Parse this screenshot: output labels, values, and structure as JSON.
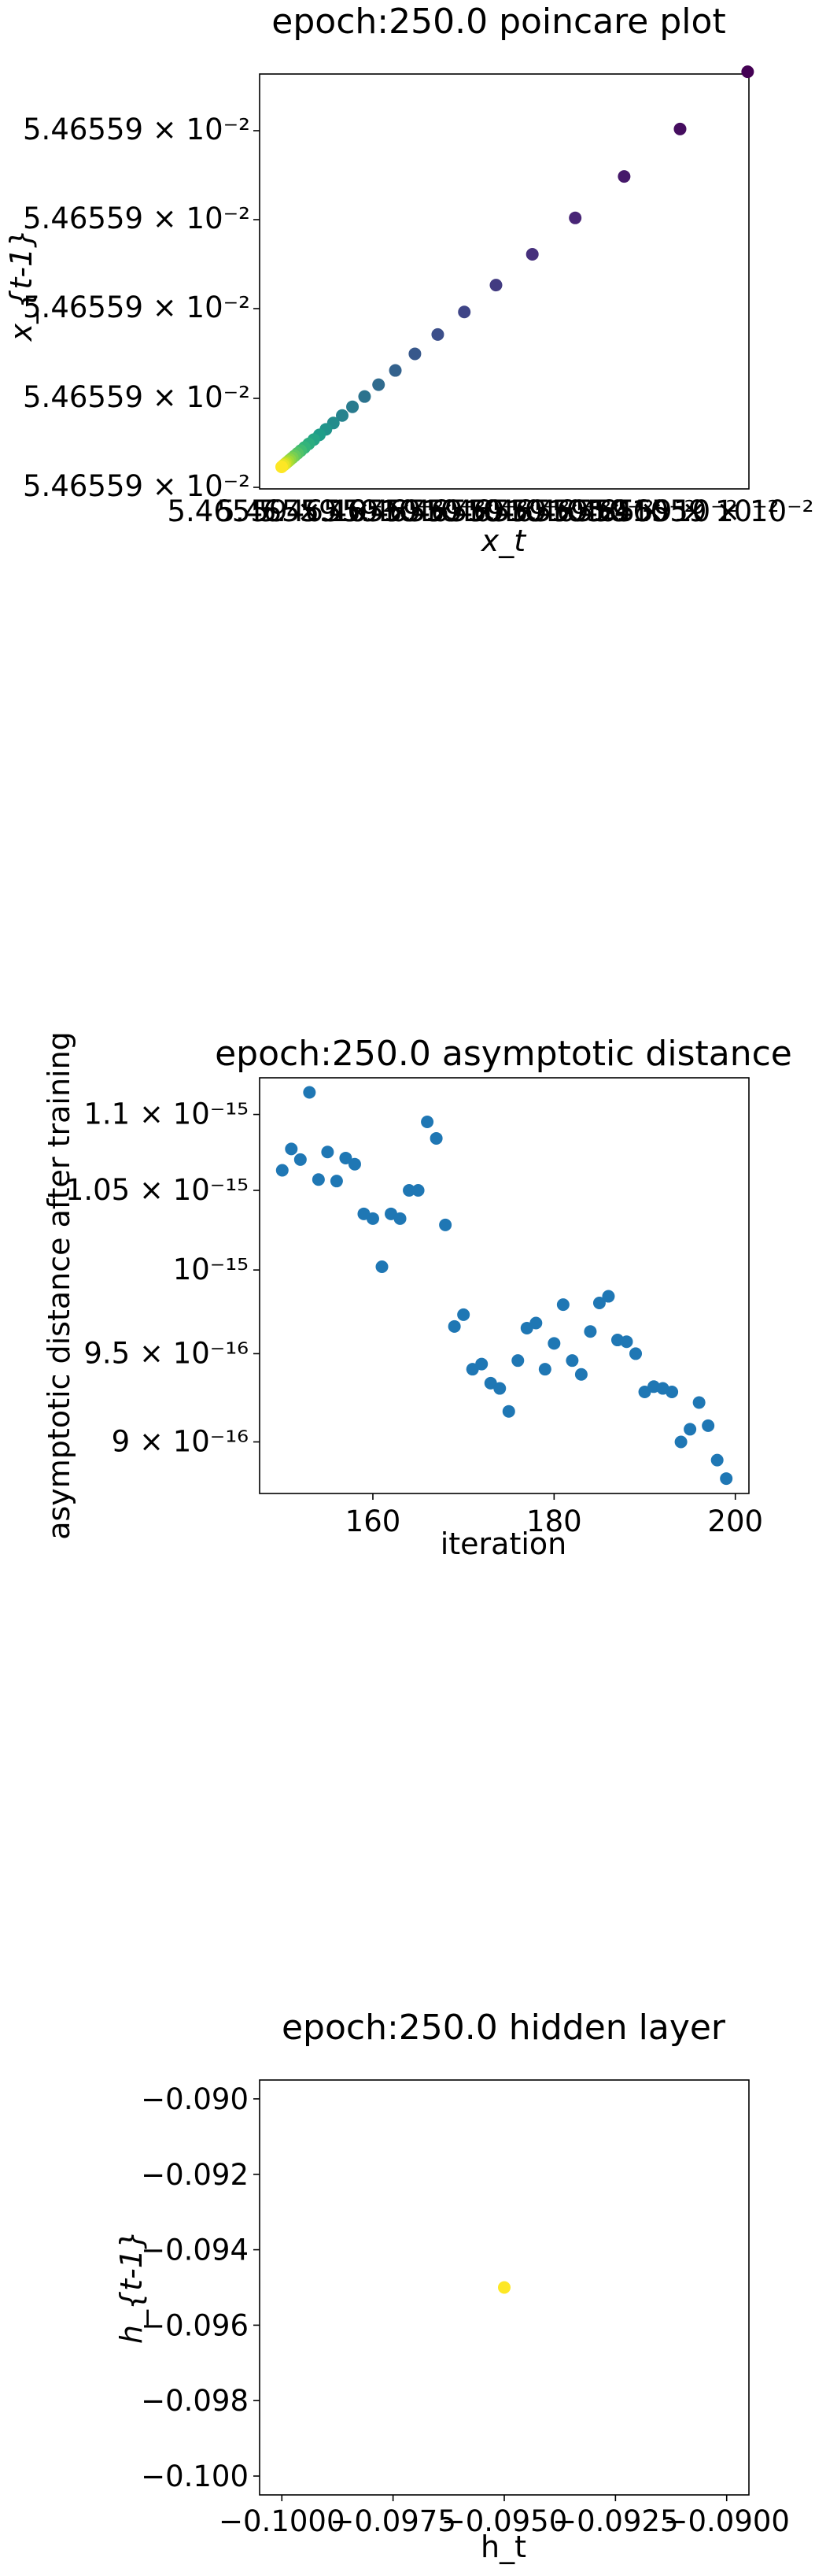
{
  "chart_data": [
    {
      "type": "scatter",
      "title": "epoch:250.0 poincare plot",
      "xlabel": "x_t",
      "ylabel": "x_{t-1}",
      "colormap": "viridis",
      "xlim": [
        0,
        1.05
      ],
      "ylim": [
        0,
        1.05
      ],
      "x_tick_labels": [
        "5.46559 × 10⁻²",
        "5.46559 × 10⁻²",
        "5.46559 × 10⁻²",
        "5.46559 × 10⁻²",
        "5.46559 × 10⁻²",
        "5.46559 × 10⁻²",
        "5.46559 × 10⁻²",
        "5.46559 × 10⁻²",
        "5.46559 × 10⁻²",
        "5.46559 × 10⁻²",
        "5.46559 × 10⁻²"
      ],
      "y_tick_labels": [
        "5.46559 × 10⁻²",
        "5.46559 × 10⁻²",
        "5.46559 × 10⁻²",
        "5.46559 × 10⁻²",
        "5.46559 × 10⁻²"
      ],
      "x": [
        1.0,
        0.855,
        0.735,
        0.63,
        0.538,
        0.46,
        0.392,
        0.335,
        0.286,
        0.244,
        0.208,
        0.178,
        0.152,
        0.13,
        0.111,
        0.095,
        0.081,
        0.069,
        0.058,
        0.049,
        0.041,
        0.034,
        0.028,
        0.023,
        0.018,
        0.014,
        0.01,
        0.007,
        0.004,
        0.0
      ],
      "y": [
        1.0,
        0.855,
        0.735,
        0.63,
        0.538,
        0.46,
        0.392,
        0.335,
        0.286,
        0.244,
        0.208,
        0.178,
        0.152,
        0.13,
        0.111,
        0.095,
        0.081,
        0.069,
        0.058,
        0.049,
        0.041,
        0.034,
        0.028,
        0.023,
        0.018,
        0.014,
        0.01,
        0.007,
        0.004,
        0.0
      ]
    },
    {
      "type": "scatter",
      "title": "epoch:250.0 asymptotic distance",
      "xlabel": "iteration",
      "ylabel": "asymptotic distance after training",
      "log_y": true,
      "color": "#1f77b4",
      "xlim": [
        147.5,
        201.5
      ],
      "ylim": [
        8.72e-16,
        1.125e-15
      ],
      "x_ticks": [
        160,
        180,
        200
      ],
      "x_tick_labels": [
        "160",
        "180",
        "200"
      ],
      "y_ticks": [
        9e-16,
        9.5e-16,
        1e-15,
        1.05e-15,
        1.1e-15
      ],
      "y_tick_labels": [
        "9 × 10⁻¹⁶",
        "9.5 × 10⁻¹⁶",
        "10⁻¹⁵",
        "1.05 × 10⁻¹⁵",
        "1.1 × 10⁻¹⁵"
      ],
      "x": [
        150,
        151,
        152,
        153,
        154,
        155,
        156,
        157,
        158,
        159,
        160,
        161,
        162,
        163,
        164,
        165,
        166,
        167,
        168,
        169,
        170,
        171,
        172,
        173,
        174,
        175,
        176,
        177,
        178,
        179,
        180,
        181,
        182,
        183,
        184,
        185,
        186,
        187,
        188,
        189,
        190,
        191,
        192,
        193,
        194,
        195,
        196,
        197,
        198,
        199
      ],
      "y": [
        1.063e-15,
        1.077e-15,
        1.07e-15,
        1.115e-15,
        1.057e-15,
        1.075e-15,
        1.056e-15,
        1.071e-15,
        1.067e-15,
        1.035e-15,
        1.032e-15,
        1.002e-15,
        1.035e-15,
        1.032e-15,
        1.05e-15,
        1.05e-15,
        1.095e-15,
        1.084e-15,
        1.028e-15,
        9.66e-16,
        9.73e-16,
        9.41e-16,
        9.44e-16,
        9.33e-16,
        9.3e-16,
        9.17e-16,
        9.46e-16,
        9.65e-16,
        9.68e-16,
        9.41e-16,
        9.56e-16,
        9.79e-16,
        9.46e-16,
        9.38e-16,
        9.63e-16,
        9.8e-16,
        9.84e-16,
        9.58e-16,
        9.57e-16,
        9.5e-16,
        9.28e-16,
        9.31e-16,
        9.3e-16,
        9.28e-16,
        9e-16,
        9.07e-16,
        9.22e-16,
        9.09e-16,
        8.9e-16,
        8.8e-16
      ]
    },
    {
      "type": "scatter",
      "title": "epoch:250.0 hidden layer",
      "xlabel": "h_t",
      "ylabel": "h_{t-1}",
      "color": "#fde725",
      "xlim": [
        -0.1005,
        -0.0895
      ],
      "ylim": [
        -0.1005,
        -0.0895
      ],
      "x_ticks": [
        -0.1,
        -0.0975,
        -0.095,
        -0.0925,
        -0.09
      ],
      "x_tick_labels": [
        "−0.1000",
        "−0.0975",
        "−0.0950",
        "−0.0925",
        "−0.0900"
      ],
      "y_ticks": [
        -0.1,
        -0.098,
        -0.096,
        -0.094,
        -0.092,
        -0.09
      ],
      "y_tick_labels": [
        "−0.100",
        "−0.098",
        "−0.096",
        "−0.094",
        "−0.092",
        "−0.090"
      ],
      "x": [
        -0.095
      ],
      "y": [
        -0.095
      ]
    }
  ]
}
